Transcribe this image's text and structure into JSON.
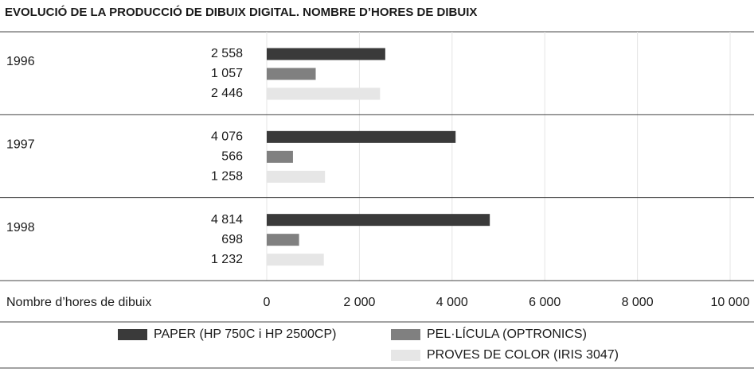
{
  "chart_data": {
    "type": "bar",
    "orientation": "horizontal",
    "title": "EVOLUCIÓ DE LA PRODUCCIÓ DE DIBUIX DIGITAL. NOMBRE D’HORES DE DIBUIX",
    "x_label": "Nombre d’hores de dibuix",
    "categories": [
      "1996",
      "1997",
      "1998"
    ],
    "series": [
      {
        "name": "PAPER (HP 750C i HP 2500CP)",
        "color": "#3a3a3a",
        "values": [
          2558,
          4076,
          4814
        ],
        "value_labels": [
          "2 558",
          "4 076",
          "4 814"
        ]
      },
      {
        "name": "PEL·LÍCULA (OPTRONICS)",
        "color": "#808080",
        "values": [
          1057,
          566,
          698
        ],
        "value_labels": [
          "1 057",
          "566",
          "698"
        ]
      },
      {
        "name": "PROVES DE COLOR (IRIS 3047)",
        "color": "#e6e6e6",
        "values": [
          2446,
          1258,
          1232
        ],
        "value_labels": [
          "2 446",
          "1 258",
          "1 232"
        ]
      }
    ],
    "xlim": [
      0,
      10000
    ],
    "xticks": [
      0,
      {
        "value": 2000,
        "label": "2 000"
      },
      {
        "value": 4000,
        "label": "4 000"
      },
      {
        "value": 6000,
        "label": "6 000"
      },
      {
        "value": 8000,
        "label": "8 000"
      },
      {
        "value": 10000,
        "label": "10 000"
      }
    ],
    "grid": true
  }
}
